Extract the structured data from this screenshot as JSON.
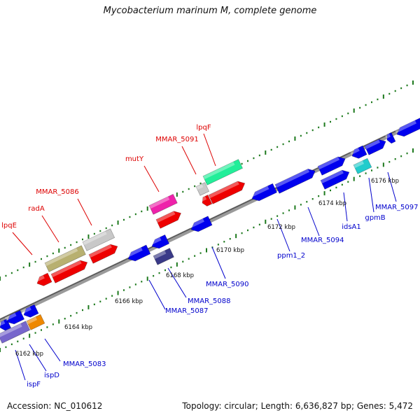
{
  "map": {
    "title": "Mycobacterium marinum M, complete genome",
    "accession_text": "Accession: NC_010612",
    "summary_text": "Topology: circular; Length: 6,636,827 bp; Genes: 5,472"
  },
  "colors": {
    "backbone": "#808080",
    "tick_green": "#1e7a1e",
    "label_red": "#dd0000",
    "label_blue": "#0000cc",
    "scale_text": "#111111"
  },
  "scale": {
    "unit": "kbp",
    "labels": [
      "6162 kbp",
      "6164 kbp",
      "6166 kbp",
      "6168 kbp",
      "6170 kbp",
      "6172 kbp",
      "6174 kbp",
      "6176 kbp"
    ]
  },
  "upper_labels": [
    "lpqE",
    "radA",
    "MMAR_5086",
    "mutY",
    "MMAR_5091",
    "lpqF"
  ],
  "lower_labels": [
    "ispF",
    "ispD",
    "MMAR_5083",
    "MMAR_5087",
    "MMAR_5088",
    "MMAR_5090",
    "ppm1_2",
    "MMAR_5094",
    "idsA1",
    "gpmB",
    "MMAR_5097"
  ],
  "feature_colors": {
    "red": "#ee0000",
    "blue": "#0000ee",
    "olive": "#b8b070",
    "silver": "#c8c8c8",
    "magenta": "#ee22aa",
    "mint": "#22ee99",
    "cyan": "#22cccc",
    "navy": "#3a3a88",
    "lavender": "#7766cc",
    "orange": "#ee8800"
  }
}
